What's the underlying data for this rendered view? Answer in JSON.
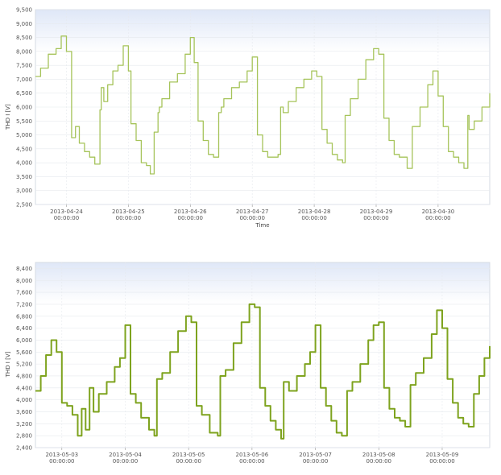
{
  "chart_data": [
    {
      "type": "line",
      "ylabel": "THD I [V]",
      "xlabel": "Time",
      "ylim": [
        2500,
        9500
      ],
      "y_ticks": [
        "2,500",
        "3,000",
        "3,500",
        "4,000",
        "4,500",
        "5,000",
        "5,500",
        "6,000",
        "6,500",
        "7,000",
        "7,500",
        "8,000",
        "8,500",
        "9,000",
        "9,500"
      ],
      "x_ticks": [
        {
          "date": "2013-04-24",
          "time": "00:00:00"
        },
        {
          "date": "2013-04-25",
          "time": "00:00:00"
        },
        {
          "date": "2013-04-26",
          "time": "00:00:00"
        },
        {
          "date": "2013-04-27",
          "time": "00:00:00"
        },
        {
          "date": "2013-04-28",
          "time": "00:00:00"
        },
        {
          "date": "2013-04-29",
          "time": "00:00:00"
        },
        {
          "date": "2013-04-30",
          "time": "00:00:00"
        }
      ],
      "xlim": [
        "2013-04-23 12:00",
        "2013-04-30 20:00"
      ],
      "grid": true,
      "color": "#a6c45a",
      "series": [
        {
          "x": [
            "2013-04-23 12:00",
            "2013-04-23 14:00",
            "2013-04-23 17:00",
            "2013-04-23 20:00",
            "2013-04-23 22:00",
            "2013-04-24 00:00",
            "2013-04-24 02:00",
            "2013-04-24 03:30",
            "2013-04-24 05:00",
            "2013-04-24 07:00",
            "2013-04-24 09:00",
            "2013-04-24 11:00",
            "2013-04-24 13:00",
            "2013-04-24 13:30",
            "2013-04-24 14:30",
            "2013-04-24 16:00",
            "2013-04-24 18:00",
            "2013-04-24 20:00",
            "2013-04-24 22:00",
            "2013-04-25 00:00",
            "2013-04-25 01:00",
            "2013-04-25 03:00",
            "2013-04-25 05:00",
            "2013-04-25 07:00",
            "2013-04-25 08:30",
            "2013-04-25 10:00",
            "2013-04-25 11:30",
            "2013-04-25 12:00",
            "2013-04-25 13:00",
            "2013-04-25 16:00",
            "2013-04-25 19:00",
            "2013-04-25 22:00",
            "2013-04-26 00:00",
            "2013-04-26 01:30",
            "2013-04-26 03:00",
            "2013-04-26 05:00",
            "2013-04-26 07:00",
            "2013-04-26 09:00",
            "2013-04-26 11:00",
            "2013-04-26 12:00",
            "2013-04-26 13:00",
            "2013-04-26 16:00",
            "2013-04-26 19:00",
            "2013-04-26 22:00",
            "2013-04-27 00:00",
            "2013-04-27 02:00",
            "2013-04-27 04:00",
            "2013-04-27 06:00",
            "2013-04-27 08:00",
            "2013-04-27 10:00",
            "2013-04-27 11:00",
            "2013-04-27 12:00",
            "2013-04-27 14:00",
            "2013-04-27 17:00",
            "2013-04-27 20:00",
            "2013-04-27 23:00",
            "2013-04-28 01:00",
            "2013-04-28 03:00",
            "2013-04-28 05:00",
            "2013-04-28 07:00",
            "2013-04-28 09:00",
            "2013-04-28 11:00",
            "2013-04-28 12:00",
            "2013-04-28 14:00",
            "2013-04-28 17:00",
            "2013-04-28 20:00",
            "2013-04-28 23:00",
            "2013-04-29 01:00",
            "2013-04-29 03:00",
            "2013-04-29 05:00",
            "2013-04-29 07:00",
            "2013-04-29 09:00",
            "2013-04-29 11:00",
            "2013-04-29 12:00",
            "2013-04-29 14:00",
            "2013-04-29 17:00",
            "2013-04-29 20:00",
            "2013-04-29 22:00",
            "2013-04-30 00:00",
            "2013-04-30 02:00",
            "2013-04-30 04:00",
            "2013-04-30 06:00",
            "2013-04-30 08:00",
            "2013-04-30 10:00",
            "2013-04-30 11:30",
            "2013-04-30 12:00",
            "2013-04-30 14:00",
            "2013-04-30 17:00",
            "2013-04-30 20:00"
          ],
          "y": [
            7100,
            7400,
            7900,
            8100,
            8550,
            8000,
            4900,
            5300,
            4700,
            4400,
            4200,
            3950,
            5900,
            6700,
            6200,
            6800,
            7300,
            7500,
            8200,
            7300,
            5400,
            4800,
            4000,
            3900,
            3600,
            5100,
            5800,
            6000,
            6300,
            6900,
            7200,
            7900,
            8500,
            7600,
            5500,
            4800,
            4300,
            4200,
            5800,
            6000,
            6300,
            6700,
            6900,
            7300,
            7800,
            5000,
            4400,
            4200,
            4200,
            4300,
            6000,
            5800,
            6200,
            6700,
            7000,
            7300,
            7100,
            5200,
            4700,
            4300,
            4100,
            4000,
            5700,
            6300,
            7000,
            7700,
            8100,
            7900,
            5600,
            4800,
            4300,
            4200,
            4200,
            3800,
            5300,
            6000,
            6800,
            7300,
            6400,
            5300,
            4400,
            4200,
            4000,
            3800,
            5700,
            5200,
            5500,
            6000,
            6500
          ]
        }
      ]
    },
    {
      "type": "line",
      "ylabel": "THD I [V]",
      "xlabel": "",
      "ylim": [
        2400,
        8600
      ],
      "y_ticks": [
        "2,400",
        "2,800",
        "3,200",
        "3,600",
        "4,000",
        "4,400",
        "4,800",
        "5,200",
        "5,600",
        "6,000",
        "6,400",
        "6,800",
        "7,200",
        "7,600",
        "8,000",
        "8,400"
      ],
      "x_ticks": [
        {
          "date": "2013-05-03",
          "time": "00:00:00"
        },
        {
          "date": "2013-05-04",
          "time": "00:00:00"
        },
        {
          "date": "2013-05-05",
          "time": "00:00:00"
        },
        {
          "date": "2013-05-06",
          "time": "00:00:00"
        },
        {
          "date": "2013-05-07",
          "time": "00:00:00"
        },
        {
          "date": "2013-05-08",
          "time": "00:00:00"
        },
        {
          "date": "2013-05-09",
          "time": "00:00:00"
        }
      ],
      "xlim": [
        "2013-05-02 14:00",
        "2013-05-09 18:00"
      ],
      "grid": true,
      "color": "#7ea31e",
      "series": [
        {
          "x": [
            "2013-05-02 14:00",
            "2013-05-02 16:00",
            "2013-05-02 18:00",
            "2013-05-02 20:00",
            "2013-05-02 22:00",
            "2013-05-03 00:00",
            "2013-05-03 02:00",
            "2013-05-03 04:00",
            "2013-05-03 06:00",
            "2013-05-03 07:30",
            "2013-05-03 09:00",
            "2013-05-03 10:30",
            "2013-05-03 12:00",
            "2013-05-03 14:00",
            "2013-05-03 17:00",
            "2013-05-03 20:00",
            "2013-05-03 22:00",
            "2013-05-04 00:00",
            "2013-05-04 02:00",
            "2013-05-04 04:00",
            "2013-05-04 06:00",
            "2013-05-04 09:00",
            "2013-05-04 11:00",
            "2013-05-04 12:00",
            "2013-05-04 14:00",
            "2013-05-04 17:00",
            "2013-05-04 20:00",
            "2013-05-04 23:00",
            "2013-05-05 01:00",
            "2013-05-05 03:00",
            "2013-05-05 05:00",
            "2013-05-05 08:00",
            "2013-05-05 11:00",
            "2013-05-05 12:00",
            "2013-05-05 14:00",
            "2013-05-05 17:00",
            "2013-05-05 20:00",
            "2013-05-05 23:00",
            "2013-05-06 01:00",
            "2013-05-06 03:00",
            "2013-05-06 05:00",
            "2013-05-06 07:00",
            "2013-05-06 09:00",
            "2013-05-06 11:00",
            "2013-05-06 12:00",
            "2013-05-06 14:00",
            "2013-05-06 17:00",
            "2013-05-06 20:00",
            "2013-05-06 22:00",
            "2013-05-07 00:00",
            "2013-05-07 02:00",
            "2013-05-07 04:00",
            "2013-05-07 06:00",
            "2013-05-07 08:00",
            "2013-05-07 10:00",
            "2013-05-07 12:00",
            "2013-05-07 14:00",
            "2013-05-07 17:00",
            "2013-05-07 20:00",
            "2013-05-07 22:00",
            "2013-05-08 00:00",
            "2013-05-08 02:00",
            "2013-05-08 04:00",
            "2013-05-08 06:00",
            "2013-05-08 08:00",
            "2013-05-08 10:00",
            "2013-05-08 12:00",
            "2013-05-08 14:00",
            "2013-05-08 17:00",
            "2013-05-08 20:00",
            "2013-05-08 22:00",
            "2013-05-09 00:00",
            "2013-05-09 02:00",
            "2013-05-09 04:00",
            "2013-05-09 06:00",
            "2013-05-09 08:00",
            "2013-05-09 10:00",
            "2013-05-09 12:00",
            "2013-05-09 14:00",
            "2013-05-09 16:00",
            "2013-05-09 18:00"
          ],
          "y": [
            4300,
            4800,
            5500,
            6000,
            5600,
            3900,
            3800,
            3500,
            2800,
            3700,
            3000,
            4400,
            3600,
            4200,
            4600,
            5100,
            5400,
            6500,
            4200,
            3900,
            3400,
            3000,
            2800,
            4700,
            4900,
            5600,
            6300,
            6800,
            6600,
            3800,
            3500,
            2900,
            2800,
            4800,
            5000,
            5900,
            6600,
            7200,
            7100,
            4400,
            3800,
            3300,
            3000,
            2700,
            4600,
            4300,
            4800,
            5200,
            5600,
            6500,
            4400,
            3800,
            3300,
            2900,
            2800,
            4300,
            4600,
            5200,
            6000,
            6500,
            6600,
            4400,
            3700,
            3400,
            3300,
            3100,
            4500,
            4900,
            5400,
            6200,
            7000,
            6400,
            4700,
            3900,
            3400,
            3200,
            3100,
            4200,
            4800,
            5400,
            5800
          ]
        }
      ]
    }
  ]
}
